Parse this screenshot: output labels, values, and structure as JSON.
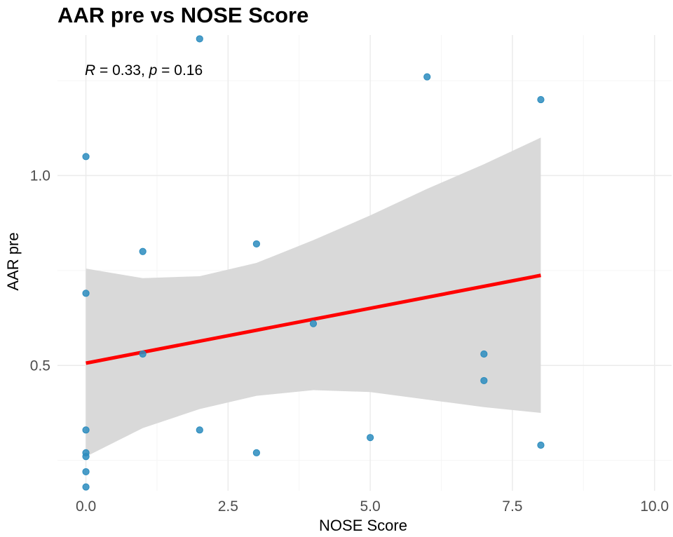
{
  "chart_data": {
    "type": "scatter",
    "title": "AAR pre vs NOSE Score",
    "xlabel": "NOSE Score",
    "ylabel": "AAR pre",
    "xlim": [
      -0.5,
      10.3
    ],
    "ylim": [
      0.17,
      1.37
    ],
    "x_ticks": [
      0.0,
      2.5,
      5.0,
      7.5,
      10.0
    ],
    "x_tick_labels": [
      "0.0",
      "2.5",
      "5.0",
      "7.5",
      "10.0"
    ],
    "y_ticks": [
      0.5,
      1.0
    ],
    "y_tick_labels": [
      "0.5",
      "1.0"
    ],
    "x_minor_ticks": [
      1.25,
      3.75,
      6.25,
      8.75
    ],
    "y_minor_ticks": [
      0.25,
      0.75,
      1.25
    ],
    "grid": true,
    "annotation": {
      "r_symbol": "R",
      "r_text": " = 0.33, ",
      "p_symbol": "p",
      "p_text": " = 0.16",
      "r": 0.33,
      "p": 0.16
    },
    "points": [
      {
        "x": 0,
        "y": 1.05
      },
      {
        "x": 0,
        "y": 0.69
      },
      {
        "x": 0,
        "y": 0.33
      },
      {
        "x": 0,
        "y": 0.27
      },
      {
        "x": 0,
        "y": 0.26
      },
      {
        "x": 0,
        "y": 0.22
      },
      {
        "x": 0,
        "y": 0.18
      },
      {
        "x": 1,
        "y": 0.8
      },
      {
        "x": 1,
        "y": 0.53
      },
      {
        "x": 2,
        "y": 1.36
      },
      {
        "x": 2,
        "y": 0.33
      },
      {
        "x": 3,
        "y": 0.82
      },
      {
        "x": 3,
        "y": 0.27
      },
      {
        "x": 4,
        "y": 0.61
      },
      {
        "x": 5,
        "y": 0.31
      },
      {
        "x": 6,
        "y": 1.26
      },
      {
        "x": 7,
        "y": 0.53
      },
      {
        "x": 7,
        "y": 0.46
      },
      {
        "x": 8,
        "y": 1.2
      },
      {
        "x": 8,
        "y": 0.29
      }
    ],
    "regression": {
      "x_range": [
        0,
        8
      ],
      "intercept": 0.506,
      "slope": 0.0289,
      "ci": [
        {
          "x": 0,
          "lower": 0.26,
          "upper": 0.755
        },
        {
          "x": 1,
          "lower": 0.335,
          "upper": 0.73
        },
        {
          "x": 2,
          "lower": 0.385,
          "upper": 0.735
        },
        {
          "x": 3,
          "lower": 0.42,
          "upper": 0.77
        },
        {
          "x": 4,
          "lower": 0.435,
          "upper": 0.83
        },
        {
          "x": 5,
          "lower": 0.43,
          "upper": 0.895
        },
        {
          "x": 6,
          "lower": 0.41,
          "upper": 0.965
        },
        {
          "x": 7,
          "lower": 0.39,
          "upper": 1.03
        },
        {
          "x": 8,
          "lower": 0.375,
          "upper": 1.1
        }
      ]
    },
    "colors": {
      "points": "#2b8cbe",
      "regression_line": "#ff0000",
      "confidence_band": "#d9d9d9",
      "grid_major": "#ebebeb",
      "grid_minor": "#f5f5f5",
      "tick_text": "#4d4d4d"
    }
  }
}
